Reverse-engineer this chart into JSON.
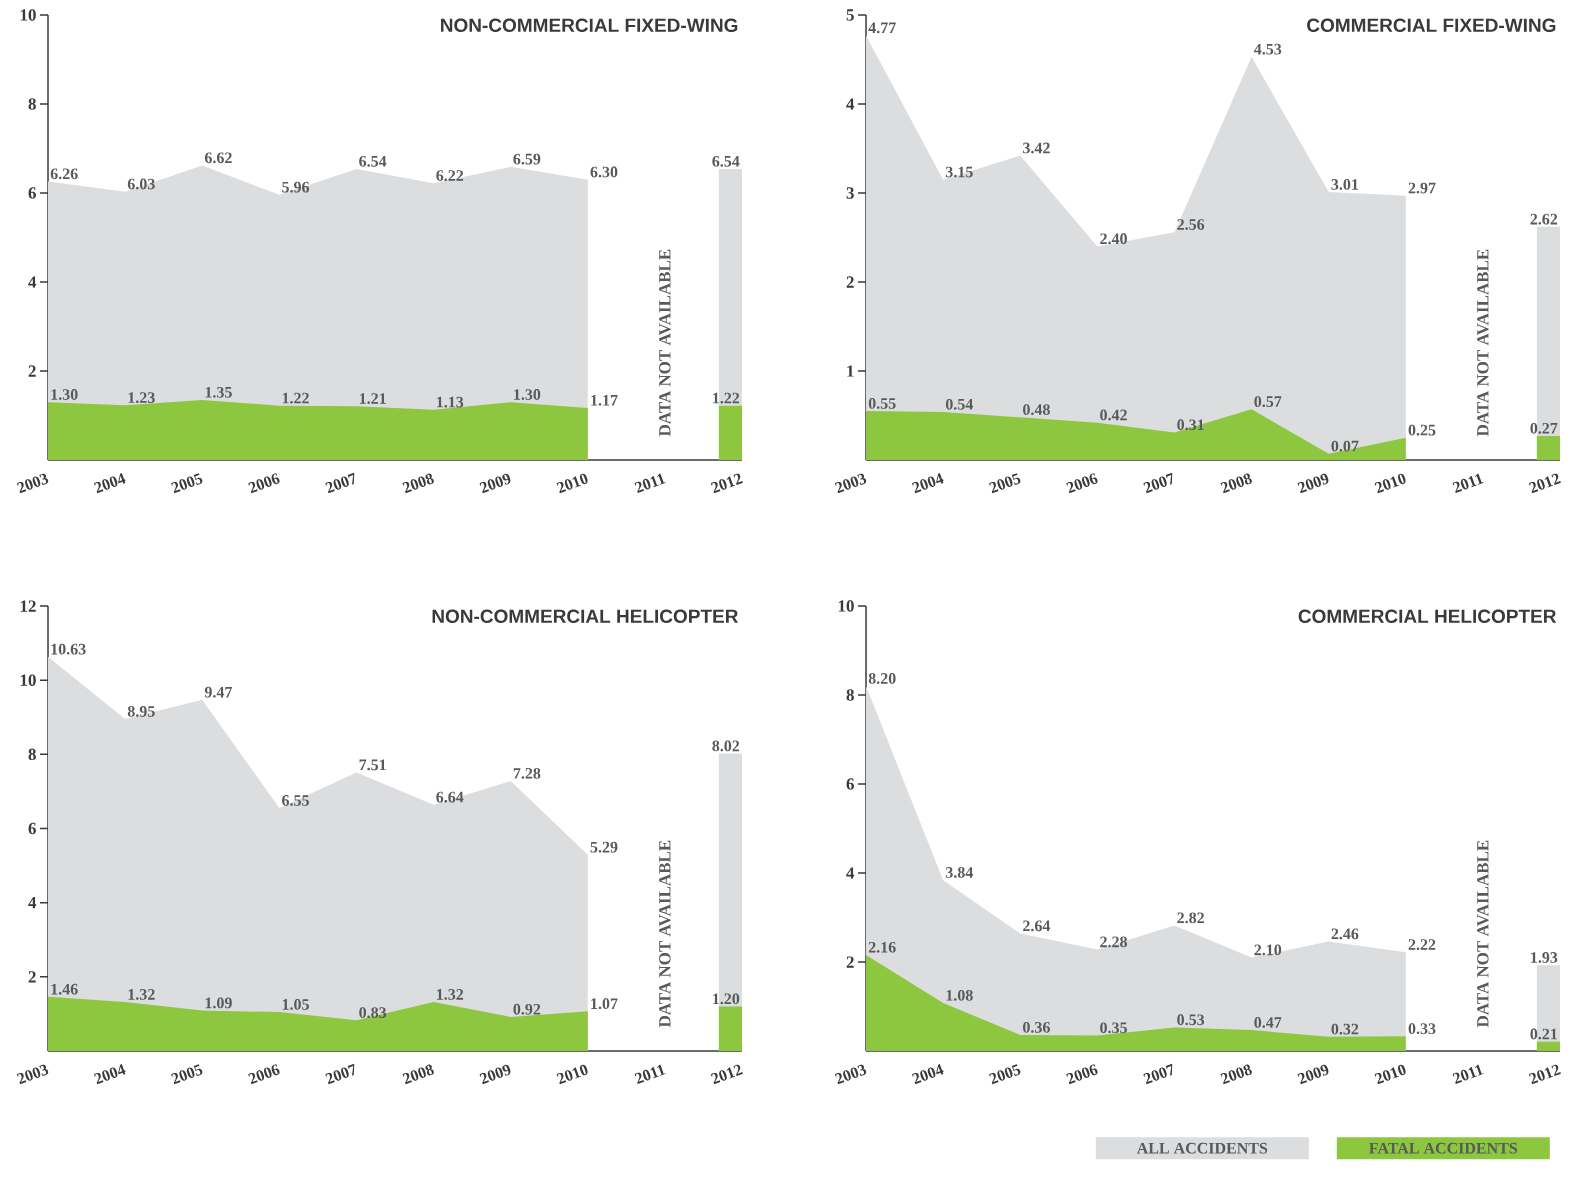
{
  "chart_data": [
    {
      "type": "area",
      "title": "NON-COMMERCIAL FIXED-WING",
      "categories": [
        "2003",
        "2004",
        "2005",
        "2006",
        "2007",
        "2008",
        "2009",
        "2010",
        "2011",
        "2012"
      ],
      "ylim": [
        0,
        10
      ],
      "yticks": [
        2,
        4,
        6,
        8,
        10
      ],
      "annotations": [
        "DATA NOT AVAILABLE"
      ],
      "series": [
        {
          "color": "#dcdddf",
          "values": [
            6.26,
            6.03,
            6.62,
            5.96,
            6.54,
            6.22,
            6.59,
            6.3,
            null,
            6.54
          ],
          "value_labels": [
            "6.26",
            "6.03",
            "6.62",
            "5.96",
            "6.54",
            "6.22",
            "6.59",
            "6.30",
            null,
            "6.54"
          ]
        },
        {
          "color": "#8dc63f",
          "values": [
            1.3,
            1.23,
            1.35,
            1.22,
            1.21,
            1.13,
            1.3,
            1.17,
            null,
            1.22
          ],
          "value_labels": [
            "1.30",
            "1.23",
            "1.35",
            "1.22",
            "1.21",
            "1.13",
            "1.30",
            "1.17",
            null,
            "1.22"
          ]
        }
      ]
    },
    {
      "type": "area",
      "title": "COMMERCIAL FIXED-WING",
      "categories": [
        "2003",
        "2004",
        "2005",
        "2006",
        "2007",
        "2008",
        "2009",
        "2010",
        "2011",
        "2012"
      ],
      "ylim": [
        0,
        5
      ],
      "yticks": [
        1,
        2,
        3,
        4,
        5
      ],
      "annotations": [
        "DATA NOT AVAILABLE"
      ],
      "series": [
        {
          "color": "#dcdddf",
          "values": [
            4.77,
            3.15,
            3.42,
            2.4,
            2.56,
            4.53,
            3.01,
            2.97,
            null,
            2.62
          ],
          "value_labels": [
            "4.77",
            "3.15",
            "3.42",
            "2.40",
            "2.56",
            "4.53",
            "3.01",
            "2.97",
            null,
            "2.62"
          ]
        },
        {
          "color": "#8dc63f",
          "values": [
            0.55,
            0.54,
            0.48,
            0.42,
            0.31,
            0.57,
            0.07,
            0.25,
            null,
            0.27
          ],
          "value_labels": [
            "0.55",
            "0.54",
            "0.48",
            "0.42",
            "0.31",
            "0.57",
            "0.07",
            "0.25",
            null,
            "0.27"
          ]
        }
      ]
    },
    {
      "type": "area",
      "title": "NON-COMMERCIAL HELICOPTER",
      "categories": [
        "2003",
        "2004",
        "2005",
        "2006",
        "2007",
        "2008",
        "2009",
        "2010",
        "2011",
        "2012"
      ],
      "ylim": [
        0,
        12
      ],
      "yticks": [
        2,
        4,
        6,
        8,
        10,
        12
      ],
      "annotations": [
        "DATA NOT AVAILABLE"
      ],
      "series": [
        {
          "color": "#dcdddf",
          "values": [
            10.63,
            8.95,
            9.47,
            6.55,
            7.51,
            6.64,
            7.28,
            5.29,
            null,
            8.02
          ],
          "value_labels": [
            "10.63",
            "8.95",
            "9.47",
            "6.55",
            "7.51",
            "6.64",
            "7.28",
            "5.29",
            null,
            "8.02"
          ]
        },
        {
          "color": "#8dc63f",
          "values": [
            1.46,
            1.32,
            1.09,
            1.05,
            0.83,
            1.32,
            0.92,
            1.07,
            null,
            1.2
          ],
          "value_labels": [
            "1.46",
            "1.32",
            "1.09",
            "1.05",
            "0.83",
            "1.32",
            "0.92",
            "1.07",
            null,
            "1.20"
          ]
        }
      ]
    },
    {
      "type": "area",
      "title": "COMMERCIAL HELICOPTER",
      "categories": [
        "2003",
        "2004",
        "2005",
        "2006",
        "2007",
        "2008",
        "2009",
        "2010",
        "2011",
        "2012"
      ],
      "ylim": [
        0,
        10
      ],
      "yticks": [
        2,
        4,
        6,
        8,
        10
      ],
      "legend": "bottom",
      "annotations": [
        "DATA NOT AVAILABLE"
      ],
      "series": [
        {
          "name": "ALL ACCIDENTS",
          "color": "#dcdddf",
          "values": [
            8.2,
            3.84,
            2.64,
            2.28,
            2.82,
            2.1,
            2.46,
            2.22,
            null,
            1.93
          ],
          "value_labels": [
            "8.20",
            "3.84",
            "2.64",
            "2.28",
            "2.82",
            "2.10",
            "2.46",
            "2.22",
            null,
            "1.93"
          ]
        },
        {
          "name": "FATAL ACCIDENTS",
          "color": "#8dc63f",
          "values": [
            2.16,
            1.08,
            0.36,
            0.35,
            0.53,
            0.47,
            0.32,
            0.33,
            null,
            0.21
          ],
          "value_labels": [
            "2.16",
            "1.08",
            "0.36",
            "0.35",
            "0.53",
            "0.47",
            "0.32",
            "0.33",
            null,
            "0.21"
          ]
        }
      ]
    }
  ]
}
